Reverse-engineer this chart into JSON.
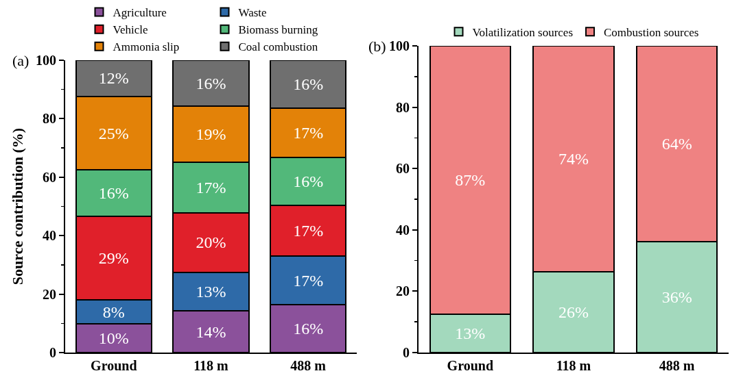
{
  "chart_data": [
    {
      "type": "bar",
      "stacked": true,
      "categories": [
        "Ground",
        "118 m",
        "488 m"
      ],
      "ylabel": "Source contribution (%)",
      "ylim": [
        0,
        100
      ],
      "yticks": [
        0,
        20,
        40,
        60,
        80,
        100
      ],
      "grid": false,
      "legend": "top",
      "annotations": [
        "(a)"
      ],
      "series": [
        {
          "name": "Agriculture",
          "color": "#8b519b",
          "values": [
            9.8,
            14.2,
            16.3
          ],
          "value_labels": [
            "10%",
            "14%",
            "16%"
          ]
        },
        {
          "name": "Waste",
          "color": "#2e6aa8",
          "values": [
            8.2,
            13.2,
            16.8
          ],
          "value_labels": [
            "8%",
            "13%",
            "17%"
          ]
        },
        {
          "name": "Vehicle",
          "color": "#e0202a",
          "values": [
            28.7,
            20.4,
            17.3
          ],
          "value_labels": [
            "29%",
            "20%",
            "17%"
          ]
        },
        {
          "name": "Biomass burning",
          "color": "#52b87a",
          "values": [
            15.8,
            17.2,
            16.4
          ],
          "value_labels": [
            "16%",
            "17%",
            "16%"
          ]
        },
        {
          "name": "Ammonia slip",
          "color": "#e38208",
          "values": [
            25.1,
            19.2,
            16.9
          ],
          "value_labels": [
            "25%",
            "19%",
            "17%"
          ]
        },
        {
          "name": "Coal combustion",
          "color": "#6f6f6f",
          "values": [
            12.4,
            15.8,
            16.2
          ],
          "value_labels": [
            "12%",
            "16%",
            "16%"
          ]
        }
      ]
    },
    {
      "type": "bar",
      "stacked": true,
      "categories": [
        "Ground",
        "118 m",
        "488 m"
      ],
      "ylim": [
        0,
        100
      ],
      "yticks": [
        0,
        20,
        40,
        60,
        80,
        100
      ],
      "grid": false,
      "legend": "top",
      "annotations": [
        "(b)"
      ],
      "series": [
        {
          "name": "Volatilization sources",
          "color": "#a3d9bd",
          "values": [
            12.6,
            26.3,
            36.1
          ],
          "value_labels": [
            "13%",
            "26%",
            "36%"
          ]
        },
        {
          "name": "Combustion sources",
          "color": "#ef8282",
          "values": [
            87.4,
            73.7,
            63.9
          ],
          "value_labels": [
            "87%",
            "74%",
            "64%"
          ]
        }
      ]
    }
  ]
}
